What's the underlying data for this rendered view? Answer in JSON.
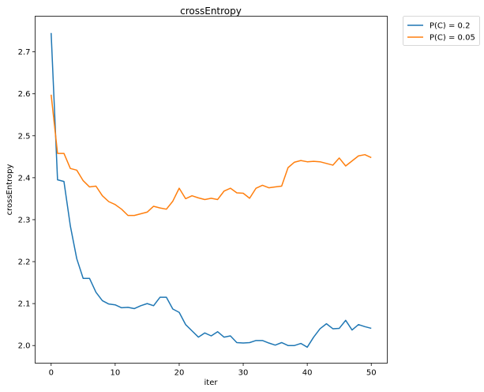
{
  "chart_data": {
    "type": "line",
    "title": "crossEntropy",
    "xlabel": "iter",
    "ylabel": "crossEntropy",
    "xlim": [
      -2.5,
      52.5
    ],
    "ylim": [
      1.958,
      2.785
    ],
    "xticks": [
      0,
      10,
      20,
      30,
      40,
      50
    ],
    "yticks": [
      2.0,
      2.1,
      2.2,
      2.3,
      2.4,
      2.5,
      2.6,
      2.7
    ],
    "xtick_labels": [
      "0",
      "10",
      "20",
      "30",
      "40",
      "50"
    ],
    "ytick_labels": [
      "2.0",
      "2.1",
      "2.2",
      "2.3",
      "2.4",
      "2.5",
      "2.6",
      "2.7"
    ],
    "grid": false,
    "legend_position": "outside-top-right",
    "x": [
      0,
      1,
      2,
      3,
      4,
      5,
      6,
      7,
      8,
      9,
      10,
      11,
      12,
      13,
      14,
      15,
      16,
      17,
      18,
      19,
      20,
      21,
      22,
      23,
      24,
      25,
      26,
      27,
      28,
      29,
      30,
      31,
      32,
      33,
      34,
      35,
      36,
      37,
      38,
      39,
      40,
      41,
      42,
      43,
      44,
      45,
      46,
      47,
      48,
      49,
      50
    ],
    "series": [
      {
        "name": "P(C) = 0.2",
        "color": "#1f77b4",
        "values": [
          2.745,
          2.395,
          2.391,
          2.285,
          2.207,
          2.16,
          2.16,
          2.127,
          2.107,
          2.099,
          2.097,
          2.09,
          2.091,
          2.088,
          2.095,
          2.1,
          2.095,
          2.115,
          2.115,
          2.087,
          2.079,
          2.05,
          2.035,
          2.02,
          2.03,
          2.023,
          2.033,
          2.02,
          2.023,
          2.007,
          2.006,
          2.007,
          2.012,
          2.012,
          2.006,
          2.001,
          2.007,
          2.0,
          2.0,
          2.005,
          1.996,
          2.02,
          2.04,
          2.052,
          2.04,
          2.041,
          2.06,
          2.037,
          2.05,
          2.045,
          2.041
        ]
      },
      {
        "name": "P(C) = 0.05",
        "color": "#ff7f0e",
        "values": [
          2.598,
          2.458,
          2.458,
          2.422,
          2.418,
          2.393,
          2.378,
          2.38,
          2.357,
          2.343,
          2.336,
          2.325,
          2.31,
          2.31,
          2.314,
          2.318,
          2.332,
          2.328,
          2.325,
          2.344,
          2.375,
          2.35,
          2.357,
          2.352,
          2.348,
          2.351,
          2.348,
          2.368,
          2.375,
          2.364,
          2.363,
          2.351,
          2.375,
          2.382,
          2.376,
          2.378,
          2.38,
          2.424,
          2.437,
          2.441,
          2.438,
          2.439,
          2.438,
          2.434,
          2.43,
          2.447,
          2.428,
          2.44,
          2.452,
          2.455,
          2.448
        ]
      }
    ]
  }
}
